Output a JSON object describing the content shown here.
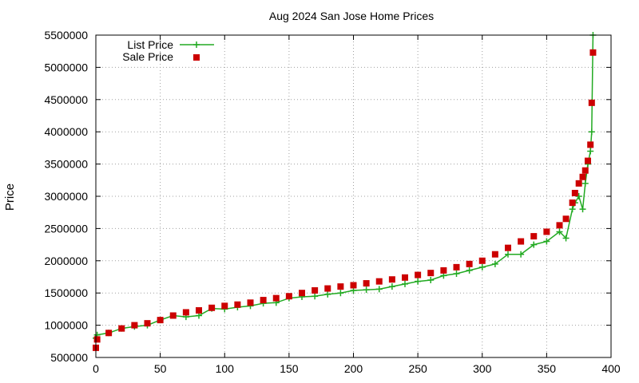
{
  "chart_data": {
    "type": "line",
    "title": "Aug 2024 San Jose Home Prices",
    "xlabel": "",
    "ylabel": "Price",
    "xlim": [
      0,
      400
    ],
    "ylim": [
      500000,
      5500000
    ],
    "x_ticks": [
      0,
      50,
      100,
      150,
      200,
      250,
      300,
      350,
      400
    ],
    "y_ticks": [
      500000,
      1000000,
      1500000,
      2000000,
      2500000,
      3000000,
      3500000,
      4000000,
      4500000,
      5000000,
      5500000
    ],
    "grid": true,
    "legend": "top-left",
    "series": [
      {
        "name": "List Price",
        "style": "line+plus",
        "color": "#22aa22",
        "x": [
          0,
          1,
          10,
          20,
          30,
          40,
          50,
          60,
          70,
          80,
          90,
          100,
          110,
          120,
          130,
          140,
          150,
          160,
          170,
          180,
          190,
          200,
          210,
          220,
          230,
          240,
          250,
          260,
          270,
          280,
          290,
          300,
          310,
          320,
          330,
          340,
          350,
          360,
          365,
          370,
          372,
          375,
          378,
          380,
          382,
          384,
          385,
          386
        ],
        "y": [
          800000,
          850000,
          880000,
          950000,
          980000,
          1000000,
          1080000,
          1150000,
          1130000,
          1150000,
          1260000,
          1250000,
          1280000,
          1300000,
          1340000,
          1350000,
          1420000,
          1440000,
          1450000,
          1480000,
          1500000,
          1540000,
          1550000,
          1560000,
          1600000,
          1640000,
          1680000,
          1700000,
          1770000,
          1800000,
          1850000,
          1900000,
          1950000,
          2100000,
          2100000,
          2250000,
          2300000,
          2450000,
          2350000,
          2800000,
          2900000,
          3000000,
          2800000,
          3200000,
          3500000,
          3700000,
          4000000,
          5500000
        ]
      },
      {
        "name": "Sale Price",
        "style": "square",
        "color": "#cc0000",
        "x": [
          0,
          1,
          10,
          20,
          30,
          40,
          50,
          60,
          70,
          80,
          90,
          100,
          110,
          120,
          130,
          140,
          150,
          160,
          170,
          180,
          190,
          200,
          210,
          220,
          230,
          240,
          250,
          260,
          270,
          280,
          290,
          300,
          310,
          320,
          330,
          340,
          350,
          360,
          365,
          370,
          372,
          375,
          378,
          380,
          382,
          384,
          385,
          386
        ],
        "y": [
          650000,
          780000,
          880000,
          950000,
          1000000,
          1030000,
          1080000,
          1150000,
          1200000,
          1230000,
          1270000,
          1300000,
          1320000,
          1350000,
          1390000,
          1420000,
          1450000,
          1500000,
          1540000,
          1570000,
          1600000,
          1620000,
          1650000,
          1680000,
          1710000,
          1740000,
          1780000,
          1810000,
          1850000,
          1900000,
          1950000,
          2000000,
          2100000,
          2200000,
          2300000,
          2380000,
          2450000,
          2550000,
          2650000,
          2900000,
          3050000,
          3200000,
          3300000,
          3400000,
          3550000,
          3800000,
          4450000,
          5230000
        ]
      }
    ]
  }
}
